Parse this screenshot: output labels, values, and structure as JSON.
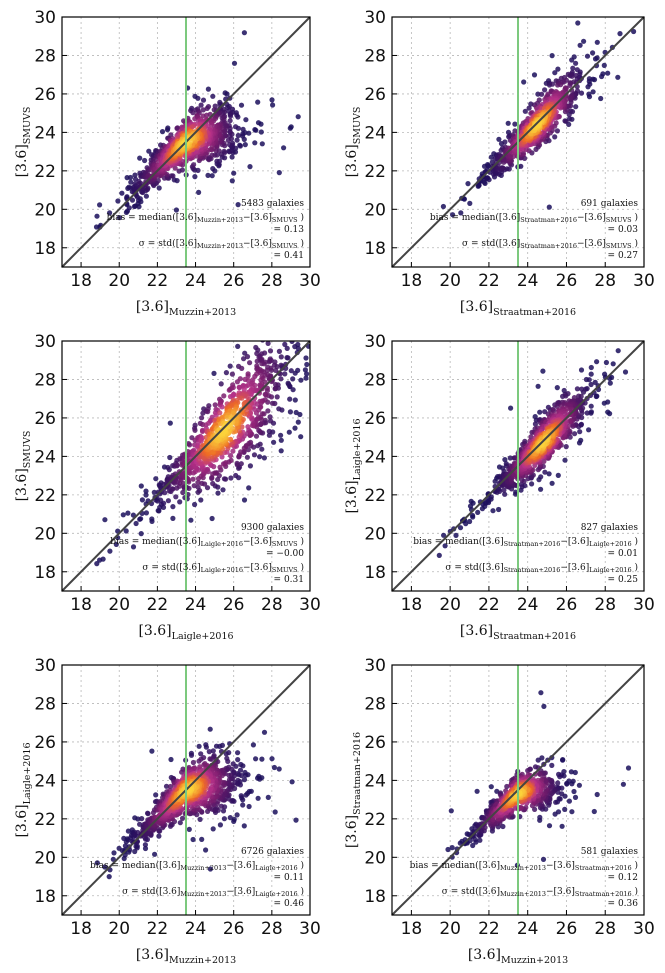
{
  "chart_data": [
    {
      "type": "scatter",
      "xlabel_base": "[3.6]",
      "xlabel_sub": "Muzzin+2013",
      "ylabel_base": "[3.6]",
      "ylabel_sub": "SMUVS",
      "xlim": [
        17,
        30
      ],
      "ylim": [
        17,
        30
      ],
      "xticks": [
        "18",
        "20",
        "22",
        "24",
        "26",
        "28",
        "30"
      ],
      "yticks": [
        "18",
        "20",
        "22",
        "24",
        "26",
        "28",
        "30"
      ],
      "grid": true,
      "one_to_one_line": true,
      "vertical_line_x": 23.5,
      "n_label": "5483 galaxies",
      "bias_prefix": "bias = median(",
      "bias_a": "[3.6]",
      "bias_a_sub": "Muzzin+2013",
      "bias_minus": "−",
      "bias_b": "[3.6]",
      "bias_b_sub": "SMUVS",
      "bias_suffix": " )",
      "bias_value": "= 0.13",
      "sigma_prefix": "σ = std(",
      "sigma_a": "[3.6]",
      "sigma_a_sub": "Muzzin+2013",
      "sigma_minus": "−",
      "sigma_b": "[3.6]",
      "sigma_b_sub": "SMUVS",
      "sigma_suffix": " )",
      "sigma_value": "= 0.41",
      "n_points": 5483,
      "cloud": {
        "x_range": [
          18.8,
          30
        ],
        "x_peak": 23.5,
        "x_spread": 1.5,
        "y_at_18": 18.5,
        "slope": 0.92,
        "y_plateau": 24.2,
        "knee": 23.2,
        "scatter": 0.45,
        "outlier_frac": 0.03
      }
    },
    {
      "type": "scatter",
      "xlabel_base": "[3.6]",
      "xlabel_sub": "Straatman+2016",
      "ylabel_base": "[3.6]",
      "ylabel_sub": "SMUVS",
      "xlim": [
        17,
        30
      ],
      "ylim": [
        17,
        30
      ],
      "xticks": [
        "18",
        "20",
        "22",
        "24",
        "26",
        "28",
        "30"
      ],
      "yticks": [
        "18",
        "20",
        "22",
        "24",
        "26",
        "28",
        "30"
      ],
      "grid": true,
      "one_to_one_line": true,
      "vertical_line_x": 23.5,
      "n_label": "691 galaxies",
      "bias_prefix": "bias = median(",
      "bias_a": "[3.6]",
      "bias_a_sub": "Straatman+2016",
      "bias_minus": "−",
      "bias_b": "[3.6]",
      "bias_b_sub": "SMUVS",
      "bias_suffix": " )",
      "bias_value": "= 0.03",
      "sigma_prefix": "σ = std(",
      "sigma_a": "[3.6]",
      "sigma_a_sub": "Straatman+2016",
      "sigma_minus": "−",
      "sigma_b": "[3.6]",
      "sigma_b_sub": "SMUVS",
      "sigma_suffix": " )",
      "sigma_value": "= 0.27",
      "n_points": 691,
      "cloud": {
        "x_range": [
          19.5,
          29.5
        ],
        "x_peak": 24.5,
        "x_spread": 1.3,
        "y_at_18": 17.9,
        "slope": 1.0,
        "y_plateau": 30,
        "knee": 30,
        "scatter": 0.35,
        "outlier_frac": 0.04
      }
    },
    {
      "type": "scatter",
      "xlabel_base": "[3.6]",
      "xlabel_sub": "Laigle+2016",
      "ylabel_base": "[3.6]",
      "ylabel_sub": "SMUVS",
      "xlim": [
        17,
        30
      ],
      "ylim": [
        17,
        30
      ],
      "xticks": [
        "18",
        "20",
        "22",
        "24",
        "26",
        "28",
        "30"
      ],
      "yticks": [
        "18",
        "20",
        "22",
        "24",
        "26",
        "28",
        "30"
      ],
      "grid": true,
      "one_to_one_line": true,
      "vertical_line_x": 23.5,
      "n_label": "9300 galaxies",
      "bias_prefix": "bias = median(",
      "bias_a": "[3.6]",
      "bias_a_sub": "Laigle+2016",
      "bias_minus": "−",
      "bias_b": "[3.6]",
      "bias_b_sub": "SMUVS",
      "bias_suffix": " )",
      "bias_value": "= −0.00",
      "sigma_prefix": "σ = std(",
      "sigma_a": "[3.6]",
      "sigma_a_sub": "Laigle+2016",
      "sigma_minus": "−",
      "sigma_b": "[3.6]",
      "sigma_b_sub": "SMUVS",
      "sigma_suffix": " )",
      "sigma_value": "= 0.31",
      "n_points": 9300,
      "cloud": {
        "x_range": [
          18.8,
          30
        ],
        "x_peak": 25.5,
        "x_spread": 1.9,
        "y_at_18": 18.1,
        "slope": 0.97,
        "y_plateau": 30,
        "knee": 30,
        "scatter": 0.6,
        "outlier_frac": 0.05
      }
    },
    {
      "type": "scatter",
      "xlabel_base": "[3.6]",
      "xlabel_sub": "Straatman+2016",
      "ylabel_base": "[3.6]",
      "ylabel_sub": "Laigle+2016",
      "xlim": [
        17,
        30
      ],
      "ylim": [
        17,
        30
      ],
      "xticks": [
        "18",
        "20",
        "22",
        "24",
        "26",
        "28",
        "30"
      ],
      "yticks": [
        "18",
        "20",
        "22",
        "24",
        "26",
        "28",
        "30"
      ],
      "grid": true,
      "one_to_one_line": true,
      "vertical_line_x": 23.5,
      "n_label": "827 galaxies",
      "bias_prefix": "bias = median(",
      "bias_a": "[3.6]",
      "bias_a_sub": "Straatman+2016",
      "bias_minus": "−",
      "bias_b": "[3.6]",
      "bias_b_sub": "Laigle+2016",
      "bias_suffix": " )",
      "bias_value": "= 0.01",
      "sigma_prefix": "σ = std(",
      "sigma_a": "[3.6]",
      "sigma_a_sub": "Straatman+2016",
      "sigma_minus": "−",
      "sigma_b": "[3.6]",
      "sigma_b_sub": "Laigle+2016",
      "sigma_suffix": " )",
      "sigma_value": "= 0.25",
      "n_points": 827,
      "cloud": {
        "x_range": [
          19.3,
          29.5
        ],
        "x_peak": 24.8,
        "x_spread": 1.3,
        "y_at_18": 17.9,
        "slope": 1.0,
        "y_plateau": 30,
        "knee": 30,
        "scatter": 0.35,
        "outlier_frac": 0.04
      }
    },
    {
      "type": "scatter",
      "xlabel_base": "[3.6]",
      "xlabel_sub": "Muzzin+2013",
      "ylabel_base": "[3.6]",
      "ylabel_sub": "Laigle+2016",
      "xlim": [
        17,
        30
      ],
      "ylim": [
        17,
        30
      ],
      "xticks": [
        "18",
        "20",
        "22",
        "24",
        "26",
        "28",
        "30"
      ],
      "yticks": [
        "18",
        "20",
        "22",
        "24",
        "26",
        "28",
        "30"
      ],
      "grid": true,
      "one_to_one_line": true,
      "vertical_line_x": 23.5,
      "n_label": "6726 galaxies",
      "bias_prefix": "bias = median(",
      "bias_a": "[3.6]",
      "bias_a_sub": "Muzzin+2013",
      "bias_minus": "−",
      "bias_b": "[3.6]",
      "bias_b_sub": "Laigle+2016",
      "bias_suffix": " )",
      "bias_value": "= 0.11",
      "sigma_prefix": "σ = std(",
      "sigma_a": "[3.6]",
      "sigma_a_sub": "Muzzin+2013",
      "sigma_minus": "−",
      "sigma_b": "[3.6]",
      "sigma_b_sub": "Laigle+2016",
      "sigma_suffix": " )",
      "sigma_value": "= 0.46",
      "n_points": 6726,
      "cloud": {
        "x_range": [
          18.8,
          30
        ],
        "x_peak": 23.6,
        "x_spread": 1.5,
        "y_at_18": 18.4,
        "slope": 0.93,
        "y_plateau": 24.0,
        "knee": 23.4,
        "scatter": 0.45,
        "outlier_frac": 0.03
      }
    },
    {
      "type": "scatter",
      "xlabel_base": "[3.6]",
      "xlabel_sub": "Muzzin+2013",
      "ylabel_base": "[3.6]",
      "ylabel_sub": "Straatman+2016",
      "xlim": [
        17,
        30
      ],
      "ylim": [
        17,
        30
      ],
      "xticks": [
        "18",
        "20",
        "22",
        "24",
        "26",
        "28",
        "30"
      ],
      "yticks": [
        "18",
        "20",
        "22",
        "24",
        "26",
        "28",
        "30"
      ],
      "grid": true,
      "one_to_one_line": true,
      "vertical_line_x": 23.5,
      "n_label": "581 galaxies",
      "bias_prefix": "bias = median(",
      "bias_a": "[3.6]",
      "bias_a_sub": "Muzzin+2013",
      "bias_minus": "−",
      "bias_b": "[3.6]",
      "bias_b_sub": "Straatman+2016",
      "bias_suffix": " )",
      "bias_value": "= 0.12",
      "sigma_prefix": "σ = std(",
      "sigma_a": "[3.6]",
      "sigma_a_sub": "Muzzin+2013",
      "sigma_minus": "−",
      "sigma_b": "[3.6]",
      "sigma_b_sub": "Straatman+2016",
      "sigma_suffix": " )",
      "sigma_value": "= 0.36",
      "n_points": 581,
      "cloud": {
        "x_range": [
          19.8,
          29.5
        ],
        "x_peak": 23.5,
        "x_spread": 1.2,
        "y_at_18": 18.2,
        "slope": 0.94,
        "y_plateau": 23.8,
        "knee": 23.4,
        "scatter": 0.35,
        "outlier_frac": 0.04
      }
    }
  ],
  "colors": {
    "one_to_one_line": "#444444",
    "vertical_line": "#7cc97e",
    "density_low": "#1a0f5c",
    "density_mid": "#b83289",
    "density_high": "#fbd53c",
    "grid": "#b8b8b8"
  }
}
